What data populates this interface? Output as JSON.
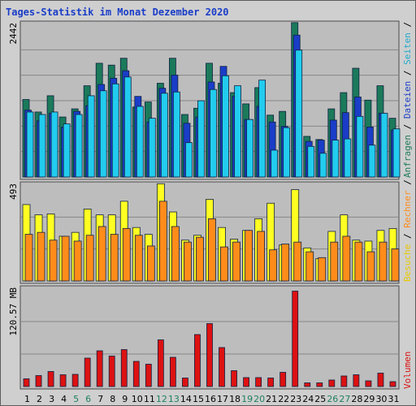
{
  "title": "Tages-Statistik im Monat Dezember 2020",
  "legend_text": {
    "top": [
      {
        "label": "Anfragen",
        "color": "#1f7a5a"
      },
      {
        "label": "Dateien",
        "color": "#1a3dc8"
      },
      {
        "label": "Seiten",
        "color": "#22aacc"
      }
    ],
    "mid": [
      {
        "label": "Besuche",
        "color": "#e8c800"
      },
      {
        "label": "Rechner",
        "color": "#ff8c1a"
      }
    ],
    "bottom": [
      {
        "label": "Volumen",
        "color": "#dd1111"
      }
    ],
    "separator": "/"
  },
  "chart_data": [
    {
      "type": "bar",
      "panel": "requests",
      "ymax_label": "2442",
      "ylim": [
        0,
        2442
      ],
      "grid": true,
      "categories": [
        "1",
        "2",
        "3",
        "4",
        "5",
        "6",
        "7",
        "8",
        "9",
        "10",
        "11",
        "12",
        "13",
        "14",
        "15",
        "16",
        "17",
        "18",
        "19",
        "20",
        "21",
        "22",
        "23",
        "24",
        "25",
        "26",
        "27",
        "28",
        "29",
        "30",
        "31"
      ],
      "series": [
        {
          "name": "Anfragen",
          "color": "#1a7a5a",
          "values": [
            1240,
            1040,
            1300,
            960,
            1090,
            1460,
            1820,
            1790,
            1900,
            1120,
            1200,
            1500,
            1900,
            1000,
            1100,
            1820,
            1500,
            1350,
            1170,
            1430,
            990,
            1050,
            2470,
            650,
            600,
            1090,
            1350,
            1740,
            1230,
            1460,
            940
          ]
        },
        {
          "name": "Dateien",
          "color": "#1a3dc8",
          "values": [
            1070,
            900,
            1020,
            800,
            1050,
            1140,
            1480,
            1580,
            1700,
            1290,
            880,
            1420,
            1630,
            860,
            960,
            1520,
            1770,
            1290,
            920,
            1130,
            880,
            810,
            2270,
            570,
            590,
            910,
            1030,
            1280,
            800,
            1020,
            750
          ]
        },
        {
          "name": "Seiten",
          "color": "#22ccee",
          "values": [
            1040,
            1000,
            1040,
            850,
            1000,
            1300,
            1380,
            1490,
            1600,
            1130,
            940,
            1340,
            1360,
            550,
            1220,
            1400,
            1620,
            1460,
            920,
            1550,
            430,
            790,
            2030,
            490,
            380,
            590,
            610,
            970,
            510,
            1020,
            770
          ]
        }
      ]
    },
    {
      "type": "bar",
      "panel": "visits",
      "ymax_label": "493",
      "ylim": [
        0,
        493
      ],
      "grid": true,
      "categories": [
        "1",
        "2",
        "3",
        "4",
        "5",
        "6",
        "7",
        "8",
        "9",
        "10",
        "11",
        "12",
        "13",
        "14",
        "15",
        "16",
        "17",
        "18",
        "19",
        "20",
        "21",
        "22",
        "23",
        "24",
        "25",
        "26",
        "27",
        "28",
        "29",
        "30",
        "31"
      ],
      "series": [
        {
          "name": "Besuche",
          "color": "#ffff22",
          "values": [
            393,
            340,
            345,
            230,
            250,
            370,
            340,
            340,
            410,
            275,
            240,
            500,
            355,
            210,
            235,
            420,
            275,
            215,
            260,
            320,
            400,
            185,
            470,
            170,
            115,
            255,
            340,
            210,
            205,
            260,
            270
          ]
        },
        {
          "name": "Rechner",
          "color": "#ff8c1a",
          "values": [
            240,
            250,
            210,
            230,
            205,
            235,
            280,
            240,
            270,
            235,
            180,
            410,
            280,
            200,
            225,
            320,
            175,
            200,
            260,
            255,
            160,
            190,
            200,
            150,
            120,
            200,
            230,
            200,
            150,
            200,
            165
          ]
        }
      ]
    },
    {
      "type": "bar",
      "panel": "volume",
      "ymax_label": "120.57 MB",
      "ylim": [
        0,
        240
      ],
      "grid": true,
      "categories": [
        "1",
        "2",
        "3",
        "4",
        "5",
        "6",
        "7",
        "8",
        "9",
        "10",
        "11",
        "12",
        "13",
        "14",
        "15",
        "16",
        "17",
        "18",
        "19",
        "20",
        "21",
        "22",
        "23",
        "24",
        "25",
        "26",
        "27",
        "28",
        "29",
        "30",
        "31"
      ],
      "series": [
        {
          "name": "Volumen",
          "color": "#dd1111",
          "values": [
            19,
            27,
            37,
            29,
            30,
            70,
            88,
            75,
            91,
            62,
            55,
            115,
            72,
            21,
            128,
            155,
            96,
            39,
            22,
            22,
            21,
            35,
            235,
            9,
            9,
            16,
            26,
            29,
            14,
            33,
            12
          ]
        }
      ]
    }
  ],
  "x_label_colors": {
    "weekday": "#000000",
    "weekend": "#1f8060"
  },
  "weekend_days": [
    "5",
    "6",
    "12",
    "13",
    "19",
    "20",
    "26",
    "27"
  ]
}
